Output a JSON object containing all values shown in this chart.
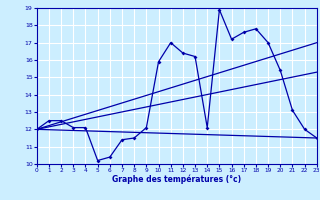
{
  "title": "Graphe des températures (°c)",
  "bg_color": "#cceeff",
  "grid_color": "#ffffff",
  "line_color": "#0000aa",
  "x_min": 0,
  "x_max": 23,
  "y_min": 10,
  "y_max": 19,
  "curve1_x": [
    0,
    1,
    2,
    3,
    4,
    5,
    6,
    7,
    8,
    9,
    10,
    11,
    12,
    13,
    14,
    15,
    16,
    17,
    18,
    19,
    20,
    21,
    22,
    23
  ],
  "curve1_y": [
    12.0,
    12.5,
    12.5,
    12.1,
    12.1,
    10.2,
    10.4,
    11.4,
    11.5,
    12.1,
    15.9,
    17.0,
    16.4,
    16.2,
    12.1,
    18.9,
    17.2,
    17.6,
    17.8,
    17.0,
    15.4,
    13.1,
    12.0,
    11.5
  ],
  "curve2_x": [
    0,
    23
  ],
  "curve2_y": [
    12.0,
    17.0
  ],
  "curve3_x": [
    0,
    23
  ],
  "curve3_y": [
    12.0,
    15.3
  ],
  "curve4_x": [
    0,
    23
  ],
  "curve4_y": [
    12.0,
    11.5
  ]
}
